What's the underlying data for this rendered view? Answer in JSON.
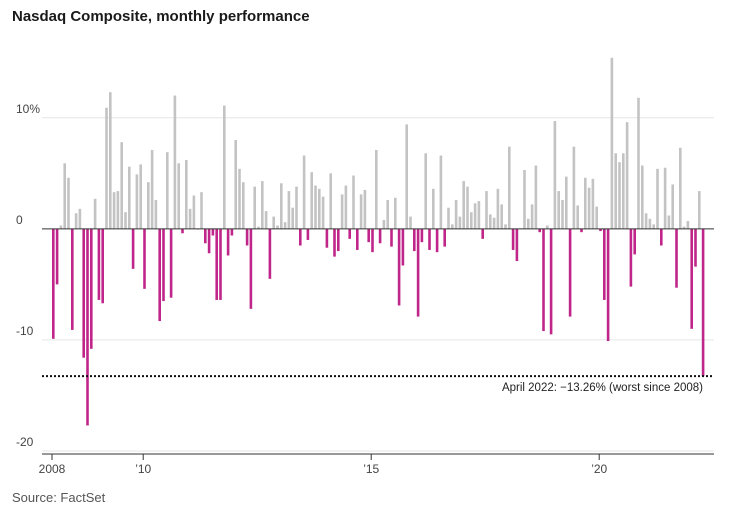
{
  "header": {
    "title": "Nasdaq Composite, monthly performance"
  },
  "footer": {
    "source": "Source: FactSet"
  },
  "colors": {
    "positive": "#c3c3c3",
    "negative": "#c0268a",
    "grid": "#e6e6e6",
    "axis": "#333333"
  },
  "chart_data": {
    "type": "bar",
    "title": "Nasdaq Composite, monthly performance",
    "xlabel": "",
    "ylabel": "",
    "unit": "%",
    "ylim": [
      -20,
      17
    ],
    "y_ticks": [
      {
        "value": 10,
        "label": "10%"
      },
      {
        "value": 0,
        "label": "0"
      },
      {
        "value": -10,
        "label": "-10"
      },
      {
        "value": -20,
        "label": "-20"
      }
    ],
    "x_ticks": [
      {
        "year": 2008,
        "label": "2008"
      },
      {
        "year": 2010,
        "label": "’10"
      },
      {
        "year": 2015,
        "label": "’15"
      },
      {
        "year": 2020,
        "label": "’20"
      }
    ],
    "start": "2008-01",
    "end": "2022-04",
    "grid": true,
    "annotation": {
      "value": -13.26,
      "label": "April 2022: −13.26% (worst since 2008)"
    },
    "values": [
      -9.9,
      -5.0,
      0.3,
      5.9,
      4.6,
      -9.1,
      1.4,
      1.8,
      -11.6,
      -17.7,
      -10.8,
      2.7,
      -6.4,
      -6.7,
      10.9,
      12.3,
      3.3,
      3.4,
      7.8,
      1.5,
      5.6,
      -3.6,
      4.9,
      5.8,
      -5.4,
      4.2,
      7.1,
      2.6,
      -8.3,
      -6.5,
      6.9,
      -6.2,
      12.0,
      5.9,
      -0.4,
      6.2,
      1.8,
      3.0,
      -0.04,
      3.3,
      -1.3,
      -2.2,
      -0.6,
      -6.4,
      -6.4,
      11.1,
      -2.4,
      -0.6,
      8.0,
      5.4,
      4.2,
      -1.5,
      -7.2,
      3.8,
      0.2,
      4.3,
      1.6,
      -4.5,
      1.1,
      0.3,
      4.1,
      0.6,
      3.4,
      1.9,
      3.8,
      -1.5,
      6.6,
      -1.0,
      5.1,
      3.9,
      3.6,
      2.9,
      -1.7,
      5.0,
      -2.5,
      -2.0,
      3.1,
      3.9,
      -0.9,
      4.8,
      -1.9,
      3.1,
      3.5,
      -1.2,
      -2.1,
      7.1,
      -1.3,
      0.8,
      2.6,
      -1.6,
      2.8,
      -6.9,
      -3.3,
      9.4,
      1.1,
      -2.0,
      -7.9,
      -1.2,
      6.8,
      -1.9,
      3.6,
      -2.1,
      6.6,
      -1.6,
      1.9,
      0.4,
      2.6,
      1.1,
      4.3,
      3.8,
      1.5,
      2.3,
      2.5,
      -0.9,
      3.4,
      1.3,
      1.0,
      3.6,
      2.2,
      0.4,
      7.4,
      -1.9,
      -2.9,
      0.04,
      5.3,
      0.9,
      2.2,
      5.7,
      -0.3,
      -9.2,
      0.3,
      -9.5,
      9.7,
      3.4,
      2.6,
      4.7,
      -7.9,
      7.4,
      2.1,
      -0.3,
      4.6,
      3.7,
      4.5,
      2.0,
      -0.2,
      -6.4,
      -10.1,
      15.4,
      6.8,
      6.0,
      6.8,
      9.6,
      -5.2,
      -2.3,
      11.8,
      5.7,
      1.4,
      0.9,
      0.4,
      5.4,
      -1.5,
      5.5,
      1.2,
      4.0,
      -5.3,
      7.3,
      0.2,
      0.7,
      -9.0,
      -3.4,
      3.4,
      -13.26
    ]
  }
}
